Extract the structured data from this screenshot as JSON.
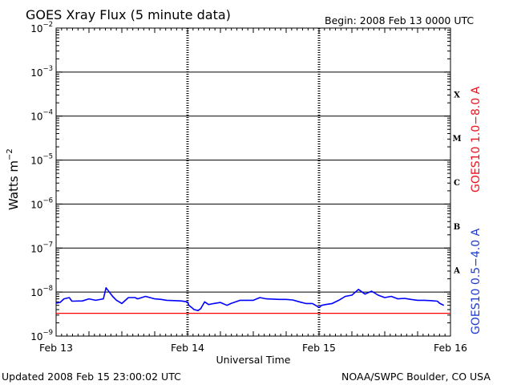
{
  "header": {
    "title": "GOES Xray Flux (5 minute data)",
    "begin": "Begin:  2008 Feb 13 0000 UTC"
  },
  "footer": {
    "updated": "Updated 2008 Feb 15 23:00:02 UTC",
    "credit": "NOAA/SWPC Boulder, CO USA"
  },
  "colors": {
    "long": "#ff0000",
    "short": "#0000ff",
    "long_label": "#e8141e",
    "short_label": "#1e3ccd"
  },
  "chart_data": {
    "type": "line",
    "title": "GOES Xray Flux (5 minute data)",
    "xlabel": "Universal Time",
    "ylabel": {
      "base": "Watts m",
      "exp": "−2"
    },
    "x_ticks": [
      "Feb 13",
      "Feb 14",
      "Feb 15",
      "Feb 16"
    ],
    "xlim_days": [
      0,
      3
    ],
    "yscale": "log",
    "ylim": [
      1e-09,
      0.01
    ],
    "y_ticks": [
      {
        "e": -2,
        "label": "−2"
      },
      {
        "e": -3,
        "label": "−3"
      },
      {
        "e": -4,
        "label": "−4"
      },
      {
        "e": -5,
        "label": "−5"
      },
      {
        "e": -6,
        "label": "−6"
      },
      {
        "e": -7,
        "label": "−7"
      },
      {
        "e": -8,
        "label": "−8"
      },
      {
        "e": -9,
        "label": "−9"
      }
    ],
    "flare_classes": [
      {
        "label": "X",
        "value": 0.0001
      },
      {
        "label": "M",
        "value": 1e-05
      },
      {
        "label": "C",
        "value": 1e-06
      },
      {
        "label": "B",
        "value": 1e-07
      },
      {
        "label": "A",
        "value": 1e-08
      }
    ],
    "series": [
      {
        "name": "GOES10 1.0−8.0 A",
        "color": "#ff0000",
        "x": [
          0,
          3
        ],
        "y": [
          3.3e-09,
          3.3e-09
        ]
      },
      {
        "name": "GOES10 0.5−4.0 A",
        "color": "#0000ff",
        "x": [
          0,
          0.03,
          0.06,
          0.1,
          0.12,
          0.2,
          0.25,
          0.3,
          0.36,
          0.38,
          0.43,
          0.46,
          0.48,
          0.5,
          0.55,
          0.6,
          0.62,
          0.68,
          0.75,
          0.8,
          0.84,
          0.9,
          0.95,
          1.0,
          1.01,
          1.03,
          1.05,
          1.08,
          1.1,
          1.13,
          1.16,
          1.2,
          1.25,
          1.3,
          1.33,
          1.4,
          1.5,
          1.55,
          1.6,
          1.7,
          1.75,
          1.8,
          1.85,
          1.9,
          1.95,
          2.0,
          2.02,
          2.05,
          2.1,
          2.15,
          2.2,
          2.25,
          2.3,
          2.35,
          2.4,
          2.45,
          2.5,
          2.55,
          2.6,
          2.65,
          2.7,
          2.75,
          2.8,
          2.85,
          2.9,
          2.92,
          2.95
        ],
        "y": [
          5.6e-09,
          5.8e-09,
          7e-09,
          7.5e-09,
          6.2e-09,
          6.3e-09,
          7e-09,
          6.5e-09,
          7e-09,
          1.25e-08,
          8e-09,
          6.5e-09,
          6e-09,
          5.5e-09,
          7.5e-09,
          7.5e-09,
          7e-09,
          8e-09,
          7e-09,
          6.8e-09,
          6.5e-09,
          6.4e-09,
          6.3e-09,
          6e-09,
          5e-09,
          4.5e-09,
          4e-09,
          3.8e-09,
          4.2e-09,
          6e-09,
          5.2e-09,
          5.5e-09,
          5.8e-09,
          5e-09,
          5.5e-09,
          6.5e-09,
          6.5e-09,
          7.5e-09,
          7e-09,
          6.8e-09,
          6.8e-09,
          6.6e-09,
          6e-09,
          5.5e-09,
          5.5e-09,
          4.5e-09,
          5e-09,
          5.2e-09,
          5.5e-09,
          6.5e-09,
          8e-09,
          8.5e-09,
          1.15e-08,
          9e-09,
          1.05e-08,
          8.5e-09,
          7.5e-09,
          8e-09,
          7e-09,
          7.2e-09,
          6.8e-09,
          6.5e-09,
          6.5e-09,
          6.4e-09,
          6.2e-09,
          5.5e-09,
          5e-09
        ]
      }
    ]
  }
}
